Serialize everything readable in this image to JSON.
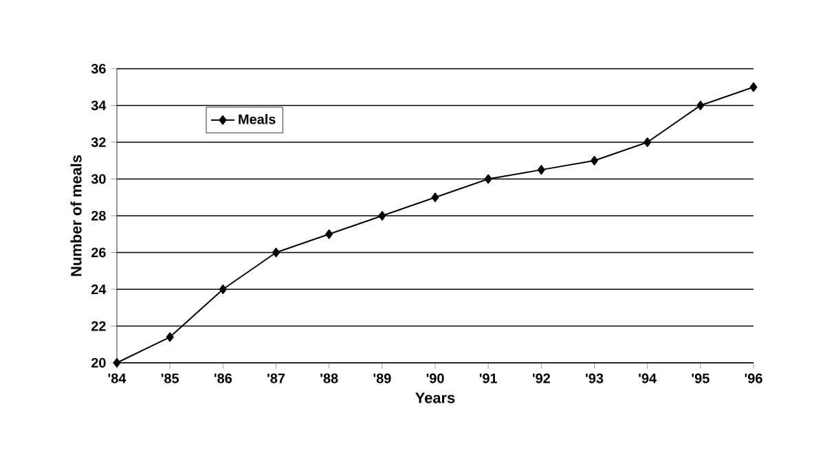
{
  "chart_data": {
    "type": "line",
    "xlabel": "Years",
    "ylabel": "Number of meals",
    "categories": [
      "'84",
      "'85",
      "'86",
      "'87",
      "'88",
      "'89",
      "'90",
      "'91",
      "'92",
      "'93",
      "'94",
      "'95",
      "'96"
    ],
    "series": [
      {
        "name": "Meals",
        "color": "#000000",
        "values": [
          20,
          21.4,
          24,
          26,
          27,
          28,
          29,
          30,
          30.5,
          31,
          32,
          34,
          35
        ]
      }
    ],
    "ylim": [
      20,
      36
    ],
    "yticks": [
      20,
      22,
      24,
      26,
      28,
      30,
      32,
      34,
      36
    ],
    "grid": "y",
    "legend": "top left",
    "marker": "diamond",
    "line_style": "solid"
  }
}
